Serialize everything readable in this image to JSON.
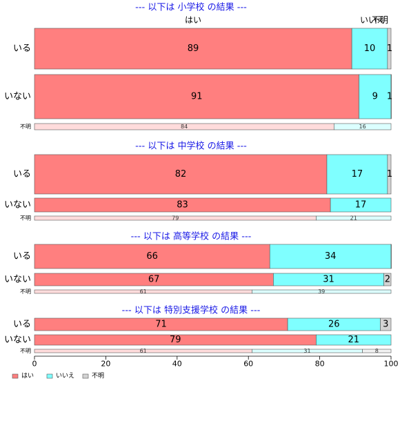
{
  "chart_data": {
    "type": "bar",
    "orientation": "horizontal",
    "stacked": true,
    "xlim": [
      0,
      100
    ],
    "x_ticks": [
      "0",
      "20",
      "40",
      "60",
      "80",
      "100"
    ],
    "top_column_labels": [
      "はい",
      "いいえ",
      "不明"
    ],
    "legend": {
      "position": "bottom-left",
      "entries": [
        {
          "label": "はい",
          "color": "#FF7F7F"
        },
        {
          "label": "いいえ",
          "color": "#7FFFFF"
        },
        {
          "label": "不明",
          "color": "#D3D3D3"
        }
      ]
    },
    "colors": {
      "yes": "#FF7F7F",
      "no": "#7FFFFF",
      "unknown": "#D3D3D3",
      "yes_light": "#FFDCDC",
      "no_light": "#DCFFFF",
      "unknown_light": "#F2F2F2",
      "title": "#1A1AE6"
    },
    "panels": [
      {
        "title": "--- 以下は 小学校 の結果 ---",
        "rows": [
          {
            "label": "いる",
            "values": [
              89,
              10,
              1
            ],
            "labels": [
              "89",
              "10",
              "1"
            ]
          },
          {
            "label": "いない",
            "values": [
              91,
              9,
              1
            ],
            "labels": [
              "91",
              "9",
              "1"
            ]
          },
          {
            "label": "不明",
            "values": [
              84,
              16,
              0
            ],
            "labels": [
              "84",
              "16",
              ""
            ]
          }
        ]
      },
      {
        "title": "--- 以下は 中学校 の結果 ---",
        "rows": [
          {
            "label": "いる",
            "values": [
              82,
              17,
              1
            ],
            "labels": [
              "82",
              "17",
              "1"
            ]
          },
          {
            "label": "いない",
            "values": [
              83,
              17,
              0
            ],
            "labels": [
              "83",
              "17",
              ""
            ]
          },
          {
            "label": "不明",
            "values": [
              79,
              21,
              0
            ],
            "labels": [
              "79",
              "21",
              ""
            ]
          }
        ]
      },
      {
        "title": "--- 以下は 高等学校 の結果 ---",
        "rows": [
          {
            "label": "いる",
            "values": [
              66,
              34,
              0.5
            ],
            "labels": [
              "66",
              "34",
              ""
            ]
          },
          {
            "label": "いない",
            "values": [
              67,
              31,
              2
            ],
            "labels": [
              "67",
              "31",
              "2"
            ]
          },
          {
            "label": "不明",
            "values": [
              61,
              39,
              0
            ],
            "labels": [
              "61",
              "39",
              ""
            ]
          }
        ]
      },
      {
        "title": "--- 以下は 特別支援学校 の結果 ---",
        "rows": [
          {
            "label": "いる",
            "values": [
              71,
              26,
              3
            ],
            "labels": [
              "71",
              "26",
              "3"
            ]
          },
          {
            "label": "いない",
            "values": [
              79,
              21,
              0
            ],
            "labels": [
              "79",
              "21",
              ""
            ]
          },
          {
            "label": "不明",
            "values": [
              61,
              31,
              8
            ],
            "labels": [
              "61",
              "31",
              "8"
            ]
          }
        ]
      }
    ]
  }
}
